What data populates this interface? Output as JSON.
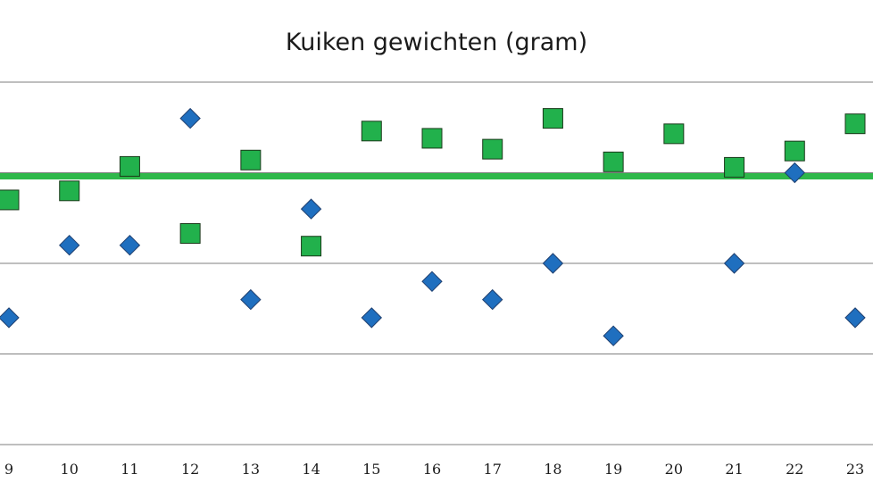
{
  "chart_data": {
    "type": "scatter",
    "title": "Kuiken gewichten (gram)",
    "xlabel": "",
    "ylabel": "",
    "x": [
      9,
      10,
      11,
      12,
      13,
      14,
      15,
      16,
      17,
      18,
      19,
      20,
      21,
      22,
      23
    ],
    "xlim": [
      9,
      23
    ],
    "ylim": [
      0,
      4
    ],
    "grid": "horizontal",
    "reference_line": {
      "y": 2.96,
      "color": "#2eb84a"
    },
    "series": [
      {
        "marker": "diamond",
        "color": "#1f6fbf",
        "x": [
          9,
          10,
          11,
          12,
          13,
          14,
          15,
          16,
          17,
          18,
          19,
          20,
          21,
          22,
          23
        ],
        "values": [
          1.4,
          2.2,
          2.2,
          3.6,
          1.6,
          2.6,
          1.4,
          1.8,
          1.6,
          2.0,
          1.2,
          null,
          2.0,
          3.0,
          1.4
        ]
      },
      {
        "marker": "square",
        "color": "#22b14c",
        "x": [
          9,
          10,
          11,
          12,
          13,
          14,
          15,
          16,
          17,
          18,
          19,
          20,
          21,
          22,
          23
        ],
        "values": [
          2.7,
          2.8,
          3.07,
          2.33,
          3.14,
          2.19,
          3.46,
          3.38,
          3.26,
          3.6,
          3.12,
          3.43,
          3.06,
          3.24,
          3.54
        ]
      }
    ]
  }
}
